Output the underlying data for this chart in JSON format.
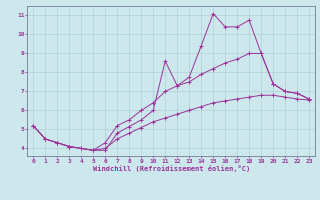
{
  "xlabel": "Windchill (Refroidissement éolien,°C)",
  "background_color": "#cce8ec",
  "grid_color": "#aaccd0",
  "line_color": "#993399",
  "spine_color": "#666688",
  "xlim_min": -0.5,
  "xlim_max": 23.5,
  "ylim_min": 3.6,
  "ylim_max": 11.5,
  "xticks": [
    0,
    1,
    2,
    3,
    4,
    5,
    6,
    7,
    8,
    9,
    10,
    11,
    12,
    13,
    14,
    15,
    16,
    17,
    18,
    19,
    20,
    21,
    22,
    23
  ],
  "yticks": [
    4,
    5,
    6,
    7,
    8,
    9,
    10,
    11
  ],
  "hours": [
    0,
    1,
    2,
    3,
    4,
    5,
    6,
    7,
    8,
    9,
    10,
    11,
    12,
    13,
    14,
    15,
    16,
    17,
    18,
    19,
    20,
    21,
    22,
    23
  ],
  "main_line": [
    5.2,
    4.5,
    4.3,
    4.1,
    4.0,
    3.9,
    3.9,
    4.8,
    5.15,
    5.5,
    6.0,
    8.6,
    7.3,
    7.75,
    9.4,
    11.1,
    10.4,
    10.4,
    10.75,
    9.0,
    7.4,
    7.0,
    6.9,
    6.6
  ],
  "upper_line": [
    5.2,
    4.5,
    4.3,
    4.1,
    4.0,
    3.9,
    4.3,
    5.2,
    5.5,
    6.0,
    6.4,
    7.0,
    7.3,
    7.5,
    7.9,
    8.2,
    8.5,
    8.7,
    9.0,
    9.0,
    7.4,
    7.0,
    6.9,
    6.6
  ],
  "lower_line": [
    5.2,
    4.5,
    4.3,
    4.1,
    4.0,
    3.9,
    4.0,
    4.5,
    4.8,
    5.1,
    5.4,
    5.6,
    5.8,
    6.0,
    6.2,
    6.4,
    6.5,
    6.6,
    6.7,
    6.8,
    6.8,
    6.7,
    6.6,
    6.55
  ]
}
